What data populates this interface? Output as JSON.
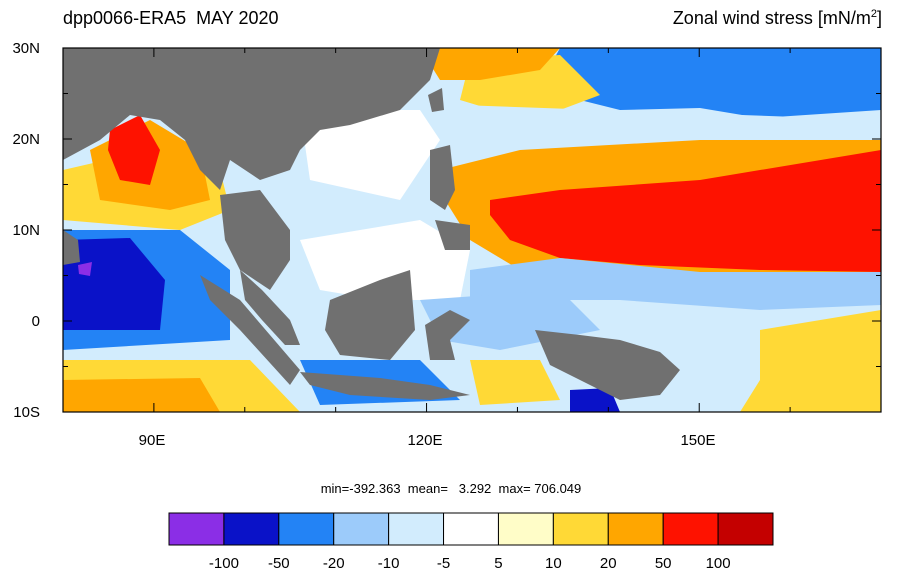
{
  "header": {
    "left_title": "dpp0066-ERA5  MAY 2020",
    "right_title_main": "Zonal wind stress [mN/m",
    "right_title_sup": "2",
    "right_title_end": "]"
  },
  "axes": {
    "lat_labels": [
      "30N",
      "20N",
      "10N",
      "0",
      "10S"
    ],
    "lon_labels": [
      "90E",
      "120E",
      "150E"
    ]
  },
  "stats": {
    "text": "min=-392.363  mean=   3.292  max= 706.049"
  },
  "colorbar": {
    "colors": [
      "#8b2ee6",
      "#0a12c8",
      "#2383f5",
      "#9ccbfa",
      "#d2ecfd",
      "#ffffff",
      "#fffdc8",
      "#ffd936",
      "#ffa600",
      "#fe1200",
      "#c40000"
    ],
    "labels": [
      "-100",
      "-50",
      "-20",
      "-10",
      "-5",
      "5",
      "10",
      "20",
      "50",
      "100"
    ]
  },
  "colors": {
    "land": "#707070"
  }
}
